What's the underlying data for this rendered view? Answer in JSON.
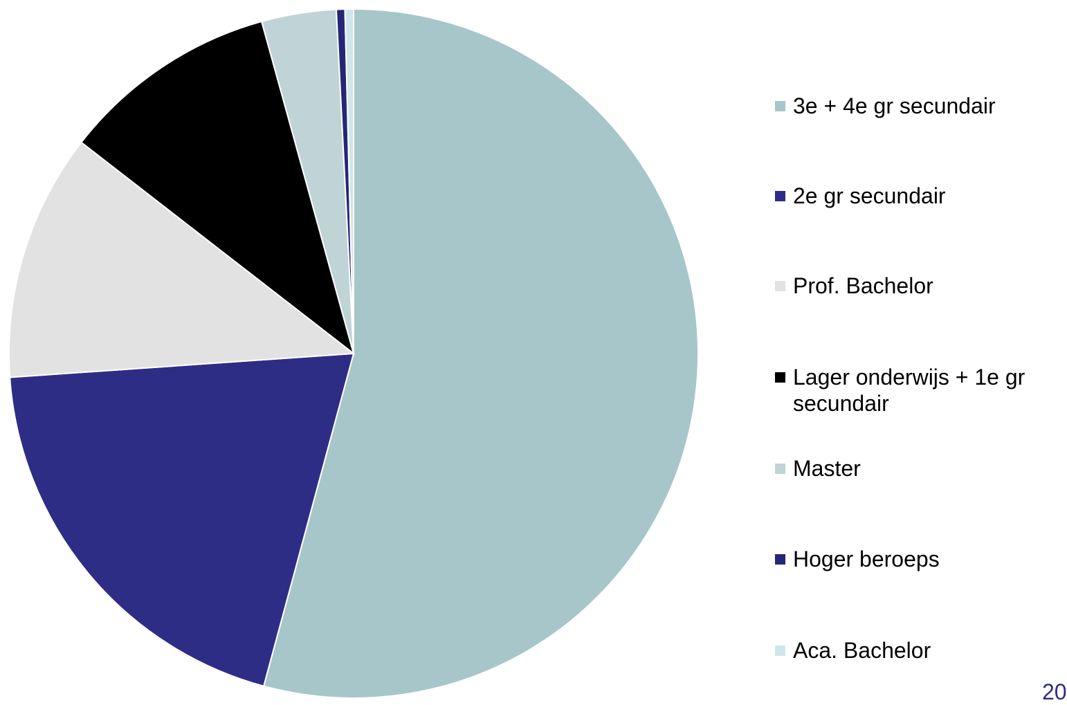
{
  "chart_data": {
    "type": "pie",
    "categories": [
      "3e + 4e gr secundair",
      "2e gr secundair",
      "Prof. Bachelor",
      "Lager onderwijs + 1e gr secundair",
      "Master",
      "Hoger beroeps",
      "Aca. Bachelor"
    ],
    "values": [
      54.2,
      19.7,
      11.6,
      10.2,
      3.5,
      0.4,
      0.4
    ],
    "colors": [
      "#a7c6c9",
      "#2e2d86",
      "#e2e2e2",
      "#000000",
      "#c0d3d6",
      "#262678",
      "#cfe6ea"
    ],
    "legend": "right",
    "page_number": "20"
  }
}
